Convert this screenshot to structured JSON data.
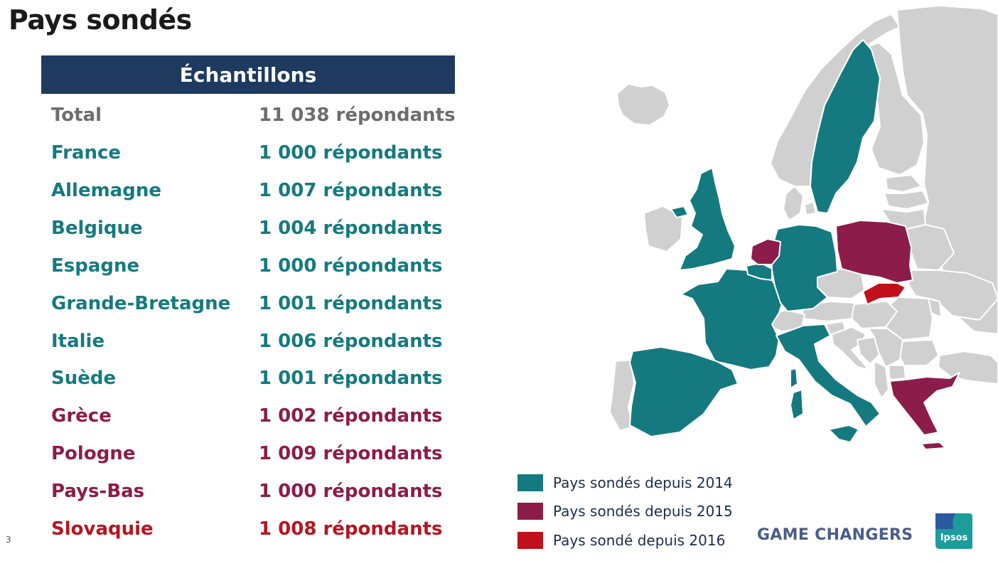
{
  "title": "Pays sondés",
  "table": {
    "header": "Échantillons",
    "rows": [
      {
        "country": "Total",
        "count": "11 038 répondants",
        "group": "total"
      },
      {
        "country": "France",
        "count": "1 000 répondants",
        "group": "2014"
      },
      {
        "country": "Allemagne",
        "count": "1 007 répondants",
        "group": "2014"
      },
      {
        "country": "Belgique",
        "count": "1 004 répondants",
        "group": "2014"
      },
      {
        "country": "Espagne",
        "count": "1 000 répondants",
        "group": "2014"
      },
      {
        "country": "Grande-Bretagne",
        "count": "1 001 répondants",
        "group": "2014"
      },
      {
        "country": "Italie",
        "count": "1 006 répondants",
        "group": "2014"
      },
      {
        "country": "Suède",
        "count": "1 001 répondants",
        "group": "2014"
      },
      {
        "country": "Grèce",
        "count": "1 002 répondants",
        "group": "2015"
      },
      {
        "country": "Pologne",
        "count": "1 009 répondants",
        "group": "2015"
      },
      {
        "country": "Pays-Bas",
        "count": "1 000 répondants",
        "group": "2015"
      },
      {
        "country": "Slovaquie",
        "count": "1 008 répondants",
        "group": "2016"
      }
    ]
  },
  "legend": [
    {
      "label": "Pays sondés depuis 2014",
      "color": "#147a80"
    },
    {
      "label": "Pays sondés depuis 2015",
      "color": "#8c1c4a"
    },
    {
      "label": "Pays sondé depuis 2016",
      "color": "#c0101c"
    }
  ],
  "colors": {
    "header_bg": "#1f3a5f",
    "total": "#6d6d6d",
    "surveyed_2014": "#147a80",
    "surveyed_2015": "#8c1c4a",
    "surveyed_2016": "#c0101c",
    "other_country": "#d0d0d0"
  },
  "brand": "GAME CHANGERS",
  "logo_text": "Ipsos",
  "page_number": "3"
}
